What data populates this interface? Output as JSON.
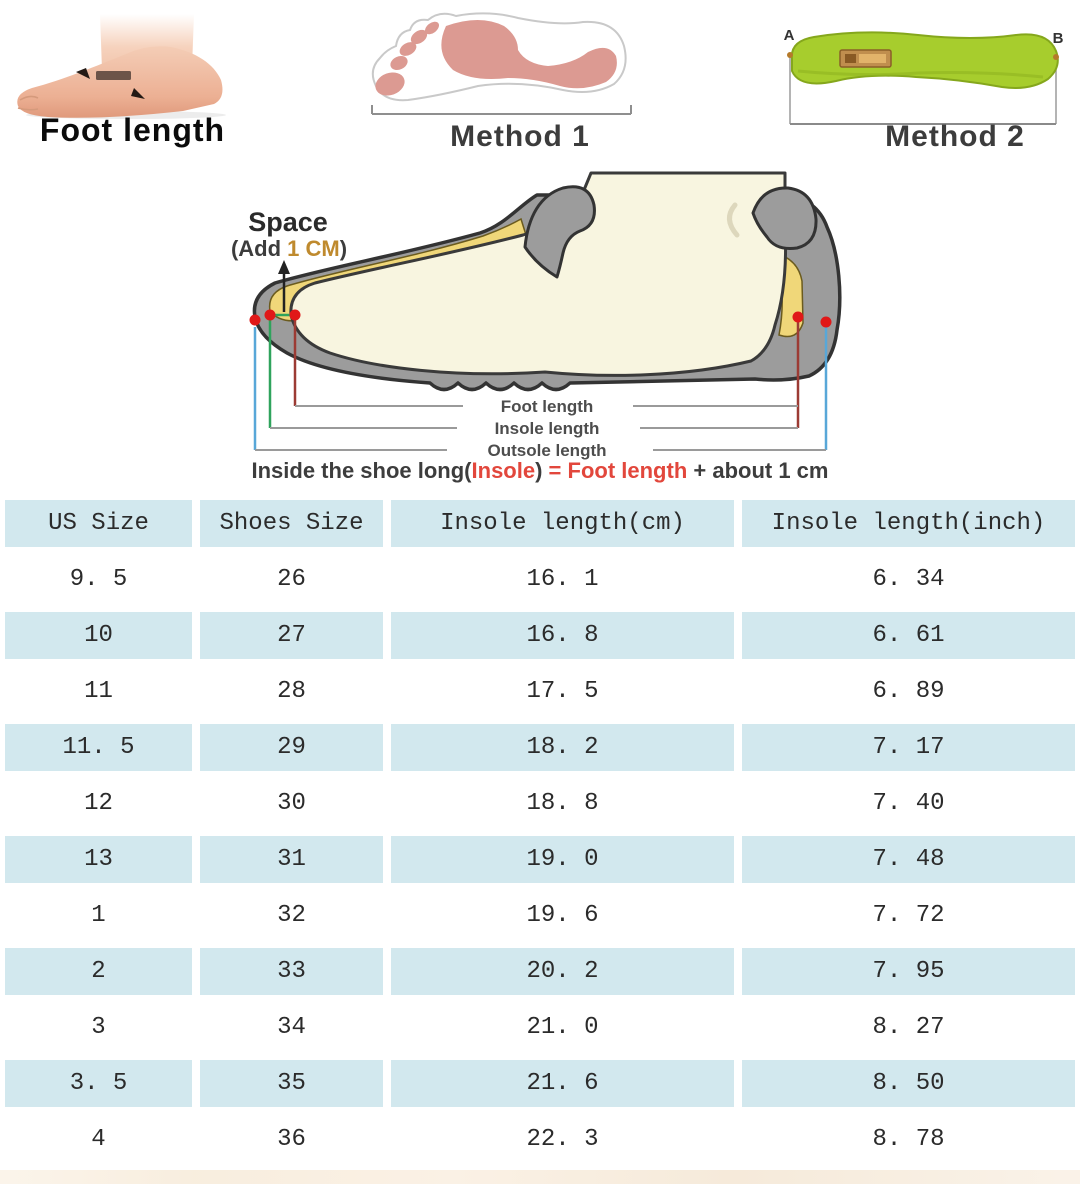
{
  "figures": {
    "foot_photo": {
      "caption": "Foot length"
    },
    "method1": {
      "caption": "Method 1"
    },
    "method2": {
      "caption": "Method 2",
      "point_a": "A",
      "point_b": "B"
    }
  },
  "diagram": {
    "space_title": "Space",
    "space_note": {
      "prefix": "(Add ",
      "highlight": "1 CM",
      "suffix": ")"
    },
    "measure_labels": [
      "Foot length",
      "Insole length",
      "Outsole length"
    ],
    "formula": {
      "p1": "Inside the shoe long(",
      "p2": "Insole",
      "p3": ") ",
      "p4": "= ",
      "p5": "Foot length",
      "p6": " + about 1 cm"
    },
    "colors": {
      "foot_line": "#9c3b34",
      "insole_line": "#2fa35c",
      "outsole_line": "#58a7d8",
      "marker_dot": "#e01818",
      "space_highlight": "#bf8a2e",
      "formula_red": "#e2473c"
    }
  },
  "chart_data": {
    "type": "table",
    "columns": [
      "US Size",
      "Shoes Size",
      "Insole length(cm)",
      "Insole length(inch)"
    ],
    "rows": [
      [
        "9. 5",
        "26",
        "16. 1",
        "6. 34"
      ],
      [
        "10",
        "27",
        "16. 8",
        "6. 61"
      ],
      [
        "11",
        "28",
        "17. 5",
        "6. 89"
      ],
      [
        "11. 5",
        "29",
        "18. 2",
        "7. 17"
      ],
      [
        "12",
        "30",
        "18. 8",
        "7. 40"
      ],
      [
        "13",
        "31",
        "19. 0",
        "7. 48"
      ],
      [
        "1",
        "32",
        "19. 6",
        "7. 72"
      ],
      [
        "2",
        "33",
        "20. 2",
        "7. 95"
      ],
      [
        "3",
        "34",
        "21. 0",
        "8. 27"
      ],
      [
        "3. 5",
        "35",
        "21. 6",
        "8. 50"
      ],
      [
        "4",
        "36",
        "22. 3",
        "8. 78"
      ]
    ],
    "header_bg": "#d2e8ee",
    "row_alt_bg": "#d2e8ee"
  }
}
